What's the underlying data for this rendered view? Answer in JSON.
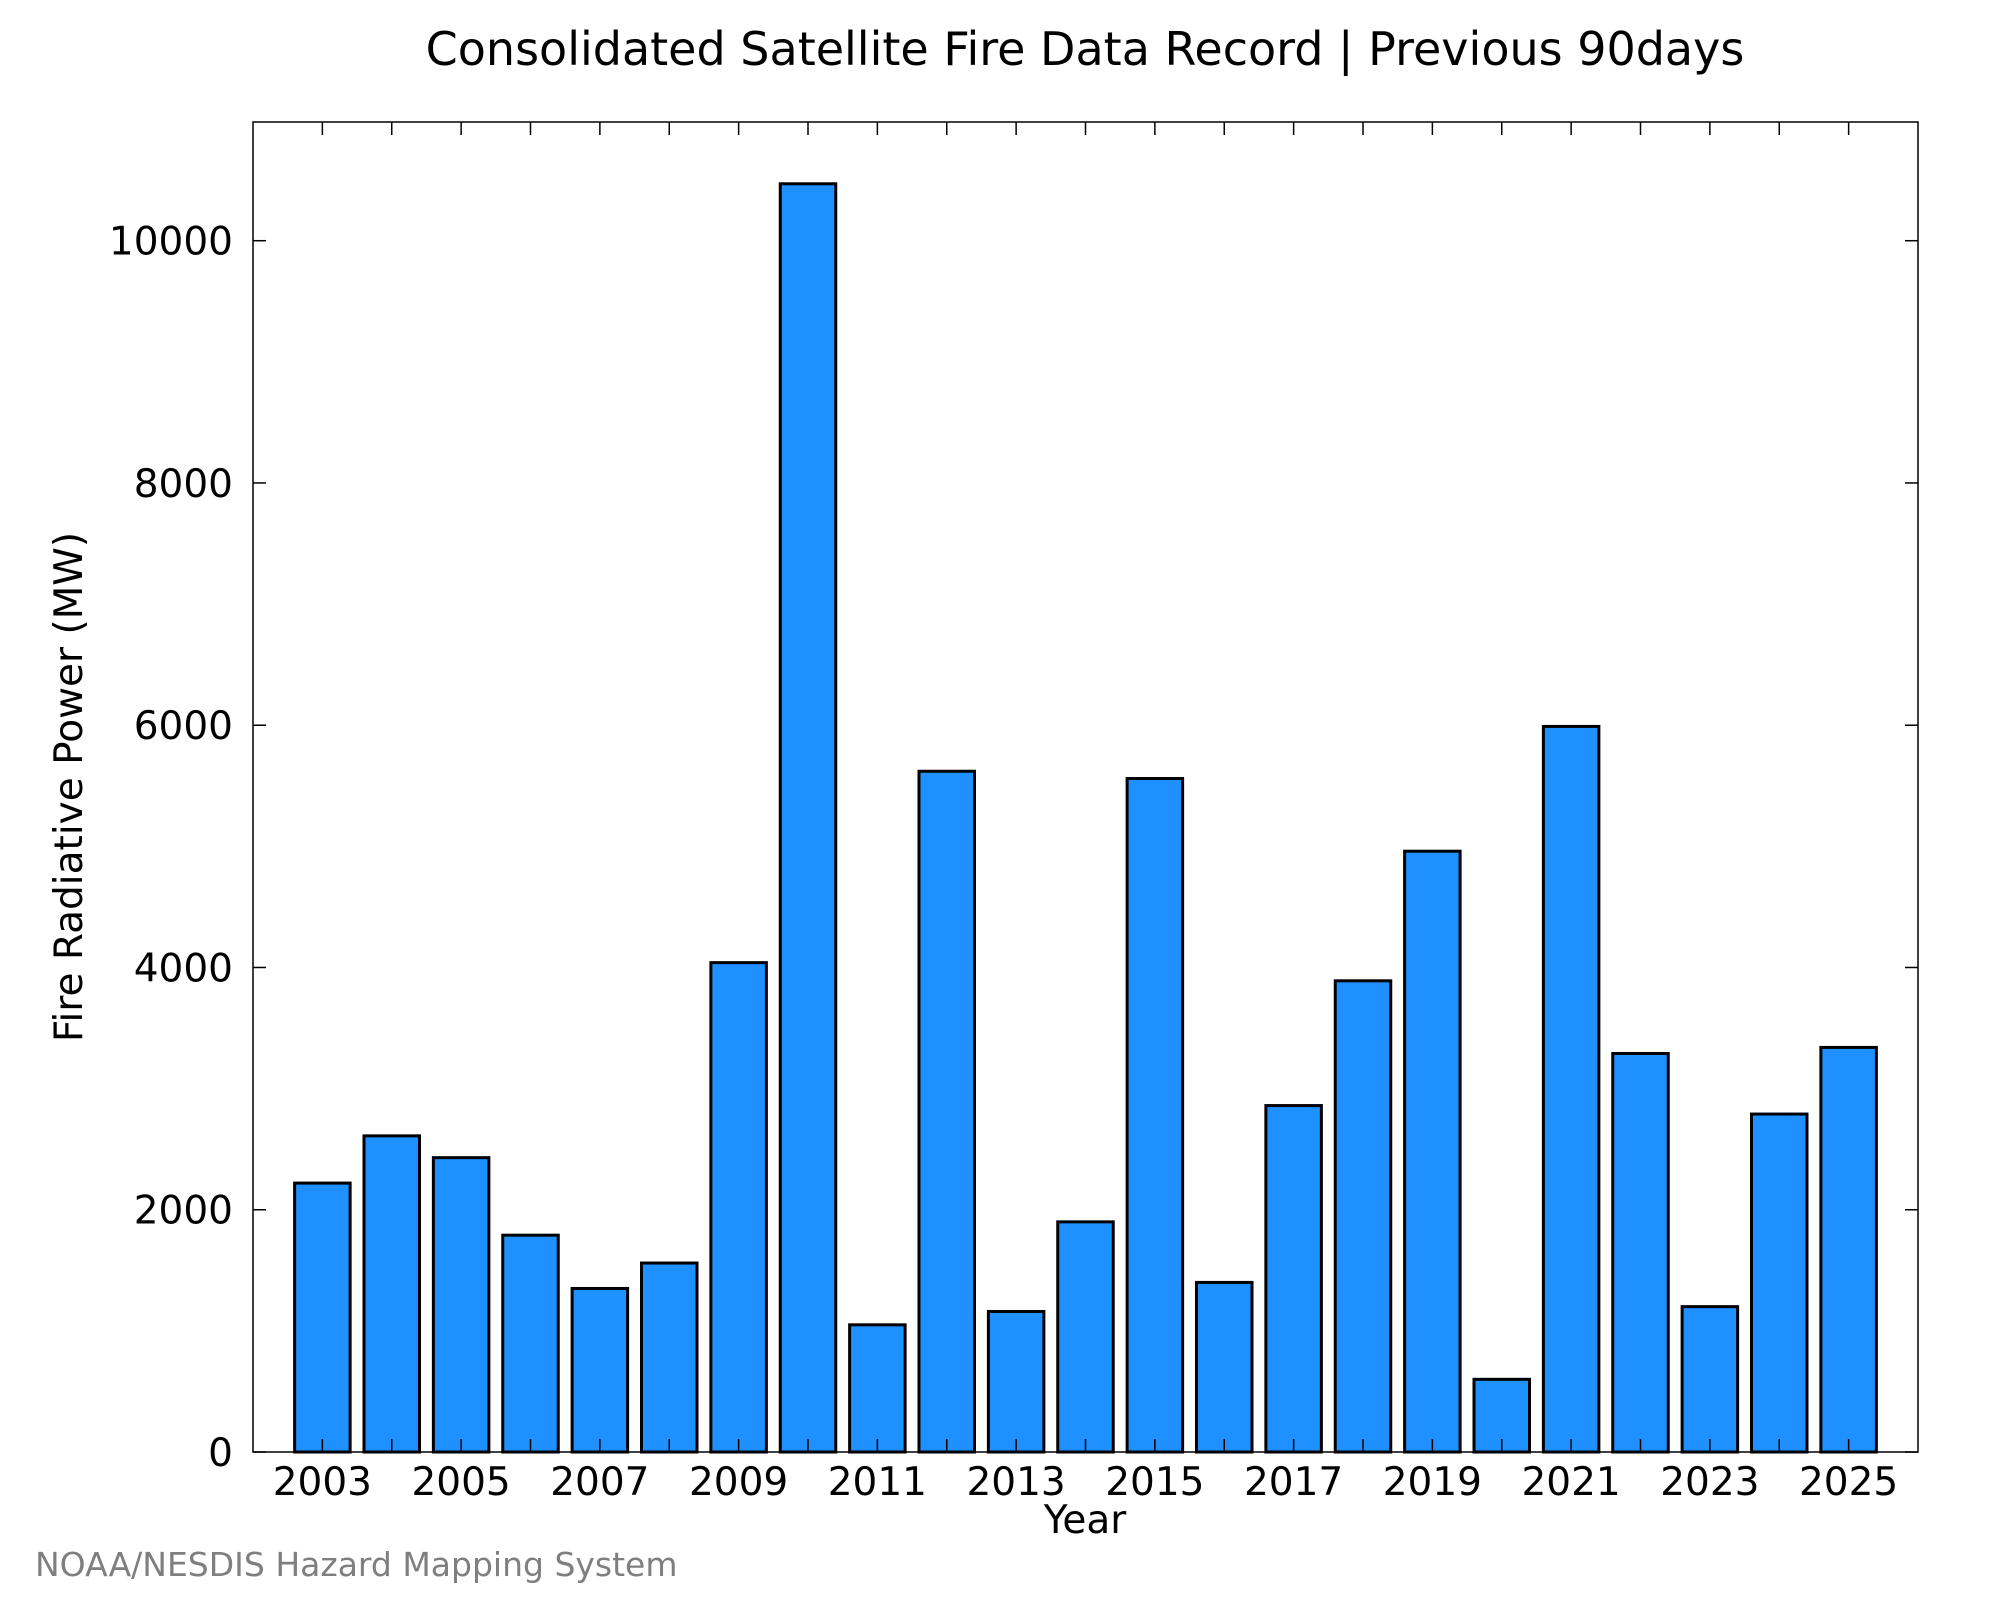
{
  "chart_data": {
    "type": "bar",
    "title": "Consolidated Satellite Fire Data Record | Previous 90days",
    "xlabel": "Year",
    "ylabel": "Fire Radiative Power (MW)",
    "categories": [
      "2003",
      "2004",
      "2005",
      "2006",
      "2007",
      "2008",
      "2009",
      "2010",
      "2011",
      "2012",
      "2013",
      "2014",
      "2015",
      "2016",
      "2017",
      "2018",
      "2019",
      "2020",
      "2021",
      "2022",
      "2023",
      "2024",
      "2025"
    ],
    "values": [
      2220,
      2610,
      2430,
      1790,
      1350,
      1560,
      4040,
      10470,
      1050,
      5620,
      1160,
      1900,
      5560,
      1400,
      2860,
      3890,
      4960,
      600,
      5990,
      3290,
      1200,
      2790,
      3340
    ],
    "xlim": [
      2002,
      2026
    ],
    "ylim": [
      0,
      10980
    ],
    "yticks": [
      0,
      2000,
      4000,
      6000,
      8000,
      10000
    ],
    "xticks": [
      2003,
      2005,
      2007,
      2009,
      2011,
      2013,
      2015,
      2017,
      2019,
      2021,
      2023,
      2025
    ],
    "grid": false,
    "bar_color": "#1e90ff"
  },
  "credit": "NOAA/NESDIS Hazard Mapping System"
}
